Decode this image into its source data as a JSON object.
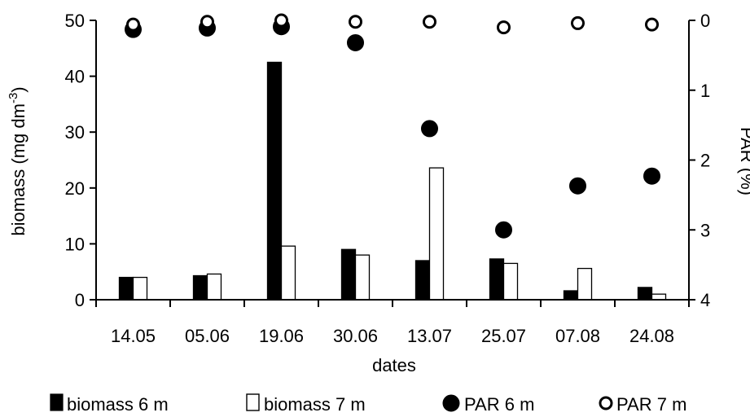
{
  "chart_data": {
    "type": "bar",
    "categories": [
      "14.05",
      "05.06",
      "19.06",
      "30.06",
      "13.07",
      "25.07",
      "07.08",
      "24.08"
    ],
    "xlabel": "dates",
    "ylabel_left_main": "biomass (mg dm",
    "ylabel_left_sup": "-3",
    "ylabel_left_end": ")",
    "ylabel_right": "PAR (%)",
    "ylim_left": [
      0,
      50
    ],
    "yticks_left": [
      0,
      10,
      20,
      30,
      40,
      50
    ],
    "ylim_right": [
      0,
      4
    ],
    "yticks_right": [
      0,
      1,
      2,
      3,
      4
    ],
    "right_axis_inverted": true,
    "grid": false,
    "legend_position": "bottom",
    "series": [
      {
        "name": "biomass 6 m",
        "kind": "bar",
        "axis": "left",
        "color": "#000000",
        "values": [
          4.0,
          4.3,
          42.5,
          9.0,
          7.0,
          7.3,
          1.6,
          2.2
        ]
      },
      {
        "name": "biomass 7 m",
        "kind": "bar",
        "axis": "left",
        "color": "#ffffff",
        "values": [
          4.0,
          4.6,
          9.6,
          8.0,
          23.6,
          6.5,
          5.6,
          1.0
        ]
      },
      {
        "name": "PAR 6 m",
        "kind": "marker",
        "axis": "right",
        "color": "#000000",
        "values": [
          0.13,
          0.11,
          0.09,
          0.32,
          1.55,
          3.0,
          2.37,
          2.23
        ]
      },
      {
        "name": "PAR 7 m",
        "kind": "marker",
        "axis": "right",
        "color": "#ffffff",
        "values": [
          0.06,
          0.02,
          0.0,
          0.02,
          0.02,
          0.1,
          0.04,
          0.06
        ]
      }
    ]
  }
}
